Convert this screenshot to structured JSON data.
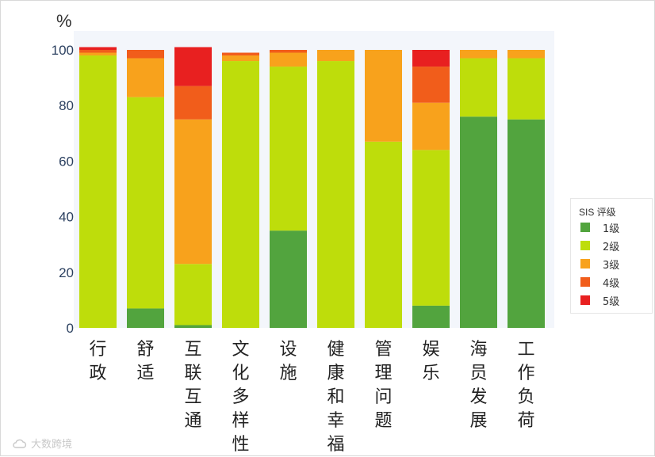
{
  "chart_data": {
    "type": "bar",
    "stacked": true,
    "ylabel": "%",
    "ylim": [
      0,
      100
    ],
    "yticks": [
      0,
      20,
      40,
      60,
      80,
      100
    ],
    "categories": [
      "行\n政",
      "舒\n适",
      "互\n联\n互\n通",
      "文\n化\n多\n样\n性",
      "设\n施",
      "健\n康\n和\n幸\n福",
      "管\n理\n问\n题",
      "娱\n乐",
      "海\n员\n发\n展",
      "工\n作\n负\n荷"
    ],
    "series": [
      {
        "name": "1级",
        "color": "#52a43e",
        "values": [
          0,
          7,
          1,
          0,
          35,
          0,
          0,
          8,
          76,
          75
        ]
      },
      {
        "name": "2级",
        "color": "#bedd0b",
        "values": [
          98,
          76,
          22,
          96,
          59,
          96,
          67,
          56,
          21,
          22
        ]
      },
      {
        "name": "3级",
        "color": "#f8a21c",
        "values": [
          1,
          14,
          52,
          2,
          5,
          4,
          33,
          17,
          3,
          3
        ]
      },
      {
        "name": "4级",
        "color": "#f15d1b",
        "values": [
          1,
          3,
          12,
          1,
          1,
          0,
          0,
          13,
          0,
          0
        ]
      },
      {
        "name": "5级",
        "color": "#e82020",
        "values": [
          1,
          0,
          14,
          0,
          0,
          0,
          0,
          6,
          0,
          0
        ]
      }
    ],
    "grid": false,
    "legend": {
      "title": "SIS 评级",
      "placement": "right"
    }
  },
  "watermark": "大数跨境",
  "watermark_icon": "cloud-logo-icon"
}
